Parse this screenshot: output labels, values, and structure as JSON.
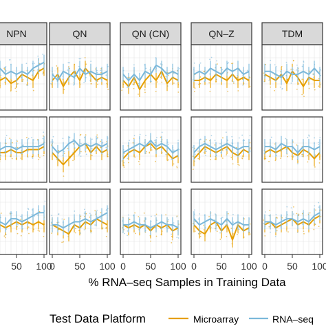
{
  "chart_data": {
    "type": "line",
    "facet_columns": [
      "NPN",
      "QN",
      "QN (CN)",
      "QN–Z",
      "TDM"
    ],
    "facet_rows": 3,
    "xlabel": "% RNA–seq Samples in Training Data",
    "x_ticks": [
      "0",
      "50",
      "100"
    ],
    "x": [
      0,
      10,
      20,
      30,
      40,
      50,
      60,
      70,
      80,
      90,
      100
    ],
    "xlim": [
      0,
      100
    ],
    "grid": true,
    "legend": {
      "title": "Test Data Platform",
      "position": "bottom",
      "entries": [
        "Microarray",
        "RNA–seq"
      ]
    },
    "colors": {
      "Microarray": "#E69F00",
      "RNA–seq": "#7BB8DA"
    },
    "panels": [
      {
        "row": 1,
        "col": "NPN",
        "series": [
          {
            "name": "Microarray",
            "values": [
              0.62,
              0.61,
              0.6,
              0.61,
              0.59,
              0.6,
              0.62,
              0.61,
              0.6,
              0.63,
              0.64
            ]
          },
          {
            "name": "RNA–seq",
            "values": [
              0.64,
              0.63,
              0.64,
              0.62,
              0.63,
              0.62,
              0.63,
              0.62,
              0.64,
              0.65,
              0.66
            ]
          }
        ]
      },
      {
        "row": 1,
        "col": "QN",
        "series": [
          {
            "name": "Microarray",
            "values": [
              0.6,
              0.62,
              0.58,
              0.61,
              0.63,
              0.6,
              0.64,
              0.62,
              0.6,
              0.61,
              0.6
            ]
          },
          {
            "name": "RNA–seq",
            "values": [
              0.62,
              0.6,
              0.63,
              0.62,
              0.61,
              0.64,
              0.62,
              0.63,
              0.62,
              0.62,
              0.63
            ]
          }
        ]
      },
      {
        "row": 1,
        "col": "QN (CN)",
        "series": [
          {
            "name": "Microarray",
            "values": [
              0.6,
              0.58,
              0.61,
              0.57,
              0.6,
              0.62,
              0.6,
              0.63,
              0.59,
              0.61,
              0.6
            ]
          },
          {
            "name": "RNA–seq",
            "values": [
              0.62,
              0.6,
              0.62,
              0.6,
              0.63,
              0.62,
              0.65,
              0.64,
              0.62,
              0.63,
              0.62
            ]
          }
        ]
      },
      {
        "row": 1,
        "col": "QN–Z",
        "series": [
          {
            "name": "Microarray",
            "values": [
              0.6,
              0.6,
              0.61,
              0.6,
              0.62,
              0.61,
              0.6,
              0.62,
              0.6,
              0.61,
              0.6
            ]
          },
          {
            "name": "RNA–seq",
            "values": [
              0.62,
              0.63,
              0.62,
              0.64,
              0.63,
              0.62,
              0.64,
              0.63,
              0.64,
              0.62,
              0.63
            ]
          }
        ]
      },
      {
        "row": 1,
        "col": "TDM",
        "series": [
          {
            "name": "Microarray",
            "values": [
              0.62,
              0.61,
              0.6,
              0.62,
              0.59,
              0.63,
              0.61,
              0.58,
              0.61,
              0.6,
              0.6
            ]
          },
          {
            "name": "RNA–seq",
            "values": [
              0.63,
              0.63,
              0.62,
              0.61,
              0.63,
              0.62,
              0.62,
              0.63,
              0.62,
              0.64,
              0.62
            ]
          }
        ]
      },
      {
        "row": 2,
        "col": "NPN",
        "series": [
          {
            "name": "Microarray",
            "values": [
              0.57,
              0.59,
              0.6,
              0.6,
              0.61,
              0.6,
              0.6,
              0.61,
              0.61,
              0.61,
              0.62
            ]
          },
          {
            "name": "RNA–seq",
            "values": [
              0.6,
              0.61,
              0.61,
              0.62,
              0.62,
              0.61,
              0.62,
              0.62,
              0.62,
              0.62,
              0.63
            ]
          }
        ]
      },
      {
        "row": 2,
        "col": "QN",
        "series": [
          {
            "name": "Microarray",
            "values": [
              0.6,
              0.58,
              0.56,
              0.58,
              0.6,
              0.62,
              0.63,
              0.6,
              0.62,
              0.6,
              0.61
            ]
          },
          {
            "name": "RNA–seq",
            "values": [
              0.62,
              0.6,
              0.61,
              0.63,
              0.64,
              0.62,
              0.63,
              0.62,
              0.63,
              0.62,
              0.63
            ]
          }
        ]
      },
      {
        "row": 2,
        "col": "QN (CN)",
        "series": [
          {
            "name": "Microarray",
            "values": [
              0.58,
              0.6,
              0.61,
              0.6,
              0.62,
              0.63,
              0.61,
              0.62,
              0.6,
              0.58,
              0.59
            ]
          },
          {
            "name": "RNA–seq",
            "values": [
              0.6,
              0.61,
              0.62,
              0.63,
              0.62,
              0.64,
              0.62,
              0.63,
              0.62,
              0.6,
              0.61
            ]
          }
        ]
      },
      {
        "row": 2,
        "col": "QN–Z",
        "series": [
          {
            "name": "Microarray",
            "values": [
              0.58,
              0.6,
              0.62,
              0.61,
              0.6,
              0.61,
              0.62,
              0.6,
              0.59,
              0.61,
              0.6
            ]
          },
          {
            "name": "RNA–seq",
            "values": [
              0.6,
              0.62,
              0.63,
              0.62,
              0.61,
              0.62,
              0.63,
              0.62,
              0.61,
              0.62,
              0.62
            ]
          }
        ]
      },
      {
        "row": 2,
        "col": "TDM",
        "series": [
          {
            "name": "Microarray",
            "values": [
              0.6,
              0.61,
              0.6,
              0.61,
              0.62,
              0.6,
              0.59,
              0.61,
              0.6,
              0.58,
              0.6
            ]
          },
          {
            "name": "RNA–seq",
            "values": [
              0.62,
              0.62,
              0.61,
              0.63,
              0.62,
              0.62,
              0.6,
              0.62,
              0.62,
              0.61,
              0.62
            ]
          }
        ]
      },
      {
        "row": 3,
        "col": "NPN",
        "series": [
          {
            "name": "Microarray",
            "values": [
              0.57,
              0.59,
              0.6,
              0.59,
              0.6,
              0.61,
              0.6,
              0.61,
              0.6,
              0.61,
              0.6
            ]
          },
          {
            "name": "RNA–seq",
            "values": [
              0.6,
              0.61,
              0.61,
              0.6,
              0.62,
              0.62,
              0.61,
              0.62,
              0.63,
              0.64,
              0.64
            ]
          }
        ]
      },
      {
        "row": 3,
        "col": "QN",
        "series": [
          {
            "name": "Microarray",
            "values": [
              0.6,
              0.59,
              0.58,
              0.57,
              0.6,
              0.59,
              0.61,
              0.6,
              0.62,
              0.61,
              0.6
            ]
          },
          {
            "name": "RNA–seq",
            "values": [
              0.6,
              0.6,
              0.59,
              0.6,
              0.61,
              0.61,
              0.62,
              0.61,
              0.62,
              0.63,
              0.64
            ]
          }
        ]
      },
      {
        "row": 3,
        "col": "QN (CN)",
        "series": [
          {
            "name": "Microarray",
            "values": [
              0.6,
              0.59,
              0.6,
              0.59,
              0.6,
              0.58,
              0.6,
              0.59,
              0.6,
              0.58,
              0.59
            ]
          },
          {
            "name": "RNA–seq",
            "values": [
              0.6,
              0.6,
              0.61,
              0.6,
              0.6,
              0.59,
              0.6,
              0.61,
              0.6,
              0.6,
              0.59
            ]
          }
        ]
      },
      {
        "row": 3,
        "col": "QN–Z",
        "series": [
          {
            "name": "Microarray",
            "values": [
              0.6,
              0.58,
              0.57,
              0.6,
              0.61,
              0.58,
              0.6,
              0.55,
              0.6,
              0.58,
              0.59
            ]
          },
          {
            "name": "RNA–seq",
            "values": [
              0.62,
              0.6,
              0.61,
              0.62,
              0.61,
              0.6,
              0.62,
              0.6,
              0.61,
              0.6,
              0.6
            ]
          }
        ]
      },
      {
        "row": 3,
        "col": "TDM",
        "series": [
          {
            "name": "Microarray",
            "values": [
              0.6,
              0.61,
              0.59,
              0.6,
              0.61,
              0.62,
              0.6,
              0.61,
              0.6,
              0.62,
              0.63
            ]
          },
          {
            "name": "RNA–seq",
            "values": [
              0.61,
              0.61,
              0.6,
              0.61,
              0.62,
              0.62,
              0.61,
              0.62,
              0.61,
              0.63,
              0.64
            ]
          }
        ]
      }
    ]
  }
}
